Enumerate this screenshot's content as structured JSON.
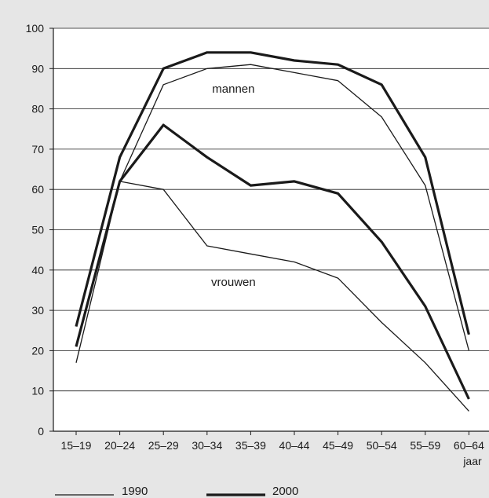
{
  "chart_data": {
    "type": "line",
    "categories": [
      "15–19",
      "20–24",
      "25–29",
      "30–34",
      "35–39",
      "40–44",
      "45–49",
      "50–54",
      "55–59",
      "60–64"
    ],
    "x_unit": "jaar",
    "ylim": [
      0,
      100
    ],
    "yticks": [
      0,
      10,
      20,
      30,
      40,
      50,
      60,
      70,
      80,
      90,
      100
    ],
    "grid": true,
    "legend_position": "bottom",
    "series": [
      {
        "group": "mannen",
        "name": "1990",
        "style": "thin",
        "values": [
          17,
          62,
          86,
          90,
          91,
          89,
          87,
          78,
          61,
          20
        ]
      },
      {
        "group": "mannen",
        "name": "2000",
        "style": "thick",
        "values": [
          26,
          68,
          90,
          94,
          94,
          92,
          91,
          86,
          68,
          24
        ]
      },
      {
        "group": "vrouwen",
        "name": "1990",
        "style": "thin",
        "values": [
          21,
          62,
          60,
          46,
          44,
          42,
          38,
          27,
          17,
          5
        ]
      },
      {
        "group": "vrouwen",
        "name": "2000",
        "style": "thick",
        "values": [
          21,
          62,
          76,
          68,
          61,
          62,
          59,
          47,
          31,
          8
        ]
      }
    ],
    "annotations": [
      {
        "text": "mannen",
        "category": "35–39",
        "value": 85
      },
      {
        "text": "vrouwen",
        "category": "35–39",
        "value": 37
      }
    ],
    "legend": [
      {
        "label": "1990",
        "style": "thin"
      },
      {
        "label": "2000",
        "style": "thick"
      }
    ]
  }
}
